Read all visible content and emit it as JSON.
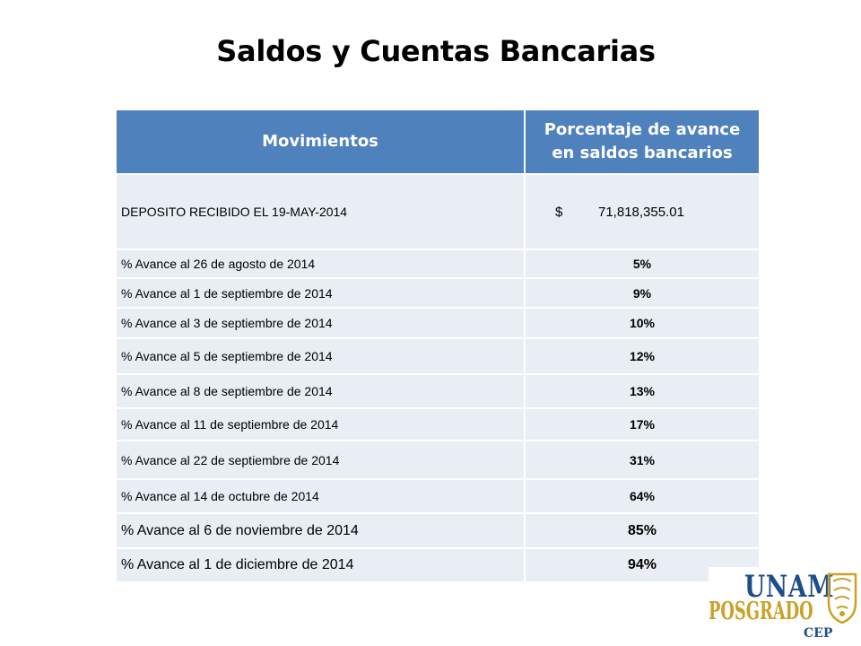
{
  "title": "Saldos y Cuentas Bancarias",
  "table": {
    "headers": [
      "Movimientos",
      "Porcentaje de avance en saldos bancarios"
    ],
    "deposit": {
      "label": "DEPOSITO RECIBIDO EL 19-MAY-2014",
      "currency": "$",
      "amount": "71,818,355.01"
    },
    "rows": [
      {
        "label": "% Avance al 26 de agosto de 2014",
        "value": "5%"
      },
      {
        "label": "% Avance al 1 de septiembre de 2014",
        "value": "9%"
      },
      {
        "label": "% Avance al 3 de septiembre de 2014",
        "value": "10%"
      },
      {
        "label": "% Avance al 5 de septiembre de 2014",
        "value": "12%"
      },
      {
        "label": "% Avance al 8 de septiembre de 2014",
        "value": "13%"
      },
      {
        "label": "% Avance al 11 de septiembre de 2014",
        "value": "17%"
      },
      {
        "label": "% Avance al 22 de septiembre de 2014",
        "value": "31%"
      },
      {
        "label": "% Avance al 14 de octubre de 2014",
        "value": "64%"
      },
      {
        "label": "% Avance al 6 de noviembre de 2014",
        "value": "85%"
      },
      {
        "label": "% Avance al 1 de diciembre de 2014",
        "value": "94%"
      }
    ]
  },
  "logo": {
    "line1": "UNAM",
    "line2": "POSGRADO",
    "line3": "CEP"
  },
  "colors": {
    "header_bg": "#4f81bd",
    "row_bg": "#e9edf4",
    "logo_blue": "#1e4e8a",
    "logo_gold": "#c9a227"
  }
}
